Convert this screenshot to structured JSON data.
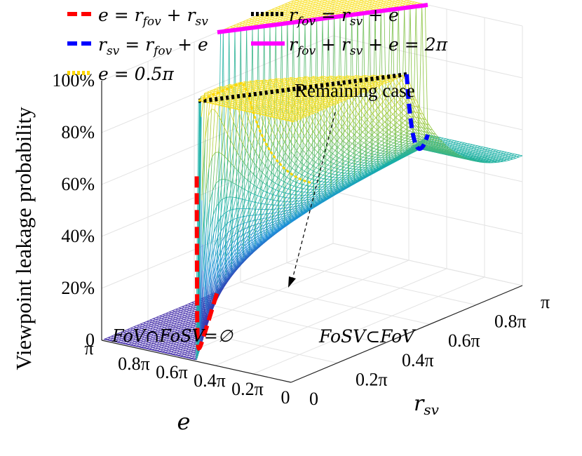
{
  "chart_data": {
    "type": "surface3d",
    "zlabel": "Viewpoint leakage probability",
    "xlabel": "e",
    "ylabel": "r_sv",
    "x_ticks": [
      "π",
      "0.8π",
      "0.6π",
      "0.4π",
      "0.2π",
      "0"
    ],
    "y_ticks": [
      "0",
      "0.2π",
      "0.4π",
      "0.6π",
      "0.8π",
      "π"
    ],
    "z_ticks": [
      "0",
      "20%",
      "40%",
      "60%",
      "80%",
      "100%"
    ],
    "xlim": [
      0,
      3.1416
    ],
    "ylim": [
      0,
      3.1416
    ],
    "zlim": [
      0,
      1
    ],
    "r_fov": 0.5,
    "legend": [
      {
        "label": "e = r_fov + r_sv",
        "color": "#ff0000",
        "style": "dashed"
      },
      {
        "label": "r_fov = r_sv + e",
        "color": "#000000",
        "style": "dotted"
      },
      {
        "label": "r_sv = r_fov + e",
        "color": "#0000ff",
        "style": "dashed"
      },
      {
        "label": "r_fov + r_sv + e = 2π",
        "color": "#ff00ff",
        "style": "solid"
      },
      {
        "label": "e = 0.5π",
        "color": "#ffd700",
        "style": "dotted"
      }
    ],
    "annotations": [
      {
        "text": "Remaining case"
      },
      {
        "text": "FoV∩FoSV=∅"
      },
      {
        "text": "FoSV⊂FoV"
      }
    ],
    "colormap": [
      "#3e26a8",
      "#1e90d9",
      "#19b0a6",
      "#8ec43c",
      "#f9e021"
    ]
  }
}
